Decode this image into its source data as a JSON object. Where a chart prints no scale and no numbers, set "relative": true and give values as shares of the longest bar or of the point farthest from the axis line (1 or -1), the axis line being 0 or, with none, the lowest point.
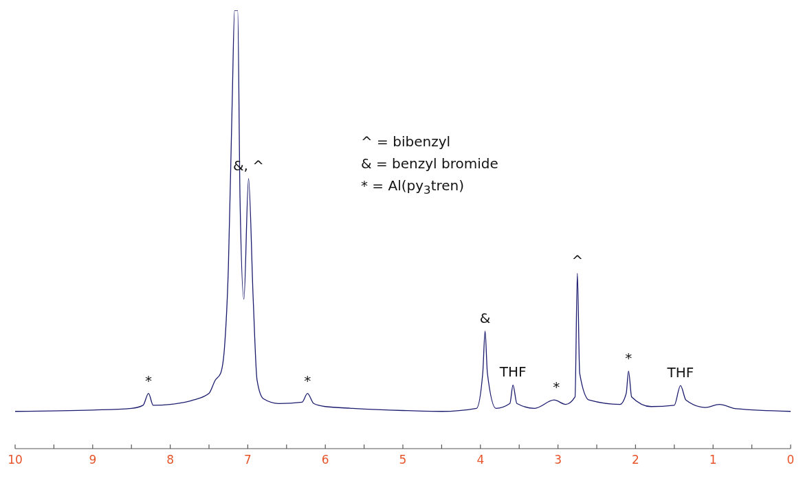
{
  "chart_data": {
    "type": "line",
    "relative": true,
    "xlim": [
      10,
      0
    ],
    "xticks": [
      10,
      {
        "value": 9.5,
        "label": null
      },
      9,
      {
        "value": 8.5,
        "label": null
      },
      8,
      {
        "value": 7.5,
        "label": null
      },
      7,
      {
        "value": 6.5,
        "label": null
      },
      6,
      {
        "value": 5.5,
        "label": null
      },
      5,
      {
        "value": 4.5,
        "label": null
      },
      4,
      {
        "value": 3.5,
        "label": null
      },
      3,
      {
        "value": 2.5,
        "label": null
      },
      2,
      {
        "value": 1.5,
        "label": null
      },
      1,
      {
        "value": 0.5,
        "label": null
      },
      0
    ],
    "marker": "none",
    "line_style": "solid",
    "series": [
      {
        "color": "#1a1a6e",
        "x": [
          10,
          9,
          8.5,
          8.35,
          8.28,
          8.22,
          8,
          7.7,
          7.5,
          7.42,
          7.35,
          7.3,
          7.25,
          7.2,
          7.17,
          7.13,
          7.1,
          7.05,
          6.99,
          6.93,
          6.88,
          6.8,
          6.6,
          6.3,
          6.23,
          6.15,
          6,
          5.65,
          5,
          4.5,
          4.05,
          3.97,
          3.94,
          3.91,
          3.8,
          3.62,
          3.58,
          3.53,
          3.3,
          3.05,
          2.9,
          2.78,
          2.75,
          2.72,
          2.6,
          2.2,
          2.12,
          2.09,
          2.05,
          1.8,
          1.5,
          1.42,
          1.35,
          1.1,
          0.92,
          0.7,
          0
        ],
        "values": [
          0.085,
          0.088,
          0.092,
          0.099,
          0.126,
          0.099,
          0.101,
          0.111,
          0.126,
          0.156,
          0.172,
          0.231,
          0.414,
          0.799,
          1,
          1,
          0.57,
          0.341,
          0.616,
          0.341,
          0.156,
          0.114,
          0.103,
          0.106,
          0.126,
          0.103,
          0.096,
          0.092,
          0.087,
          0.085,
          0.092,
          0.172,
          0.268,
          0.172,
          0.092,
          0.103,
          0.145,
          0.103,
          0.092,
          0.111,
          0.101,
          0.118,
          0.4,
          0.172,
          0.111,
          0.101,
          0.126,
          0.177,
          0.118,
          0.096,
          0.099,
          0.144,
          0.111,
          0.094,
          0.101,
          0.091,
          0.085
        ]
      }
    ],
    "annotations": [
      "^ = bibenzyl",
      "& = benzyl bromide",
      "* = Al(py$_{3}$tren)",
      {
        "text": "*",
        "x": 8.28,
        "y": 0.126
      },
      {
        "text": "&, ^",
        "x": 6.99,
        "y": 0.616
      },
      {
        "text": "*",
        "x": 6.23,
        "y": 0.126
      },
      {
        "text": "&",
        "x": 3.94,
        "y": 0.268
      },
      {
        "text": "THF",
        "x": 3.58,
        "y": 0.145
      },
      {
        "text": "*",
        "x": 3.02,
        "y": 0.111
      },
      {
        "text": "^",
        "x": 2.75,
        "y": 0.4
      },
      {
        "text": "*",
        "x": 2.09,
        "y": 0.177
      },
      {
        "text": "THF",
        "x": 1.42,
        "y": 0.144
      }
    ]
  }
}
